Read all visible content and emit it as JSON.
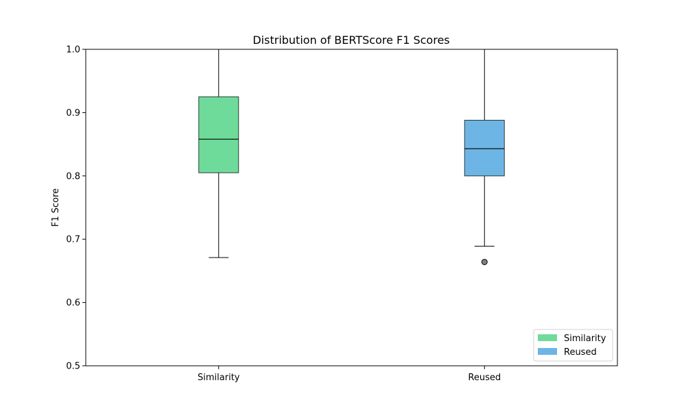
{
  "chart_data": {
    "type": "boxplot",
    "title": "Distribution of BERTScore F1 Scores",
    "xlabel": "",
    "ylabel": "F1 Score",
    "ylim": [
      0.5,
      1.0
    ],
    "yticks": [
      0.5,
      0.6,
      0.7,
      0.8,
      0.9,
      1.0
    ],
    "ytick_labels": [
      "0.5",
      "0.6",
      "0.7",
      "0.8",
      "0.9",
      "1.0"
    ],
    "categories": [
      "Similarity",
      "Reused"
    ],
    "grid": false,
    "legend": {
      "placement": "lower-right",
      "entries": [
        "Similarity",
        "Reused"
      ]
    },
    "series": [
      {
        "name": "Similarity",
        "color": "#6fdb9b",
        "whisker_low": 0.671,
        "q1": 0.805,
        "median": 0.858,
        "q3": 0.925,
        "whisker_high": 1.0,
        "outliers": []
      },
      {
        "name": "Reused",
        "color": "#6db5e4",
        "whisker_low": 0.689,
        "q1": 0.8,
        "median": 0.843,
        "q3": 0.888,
        "whisker_high": 1.0,
        "outliers": [
          0.664
        ]
      }
    ]
  }
}
